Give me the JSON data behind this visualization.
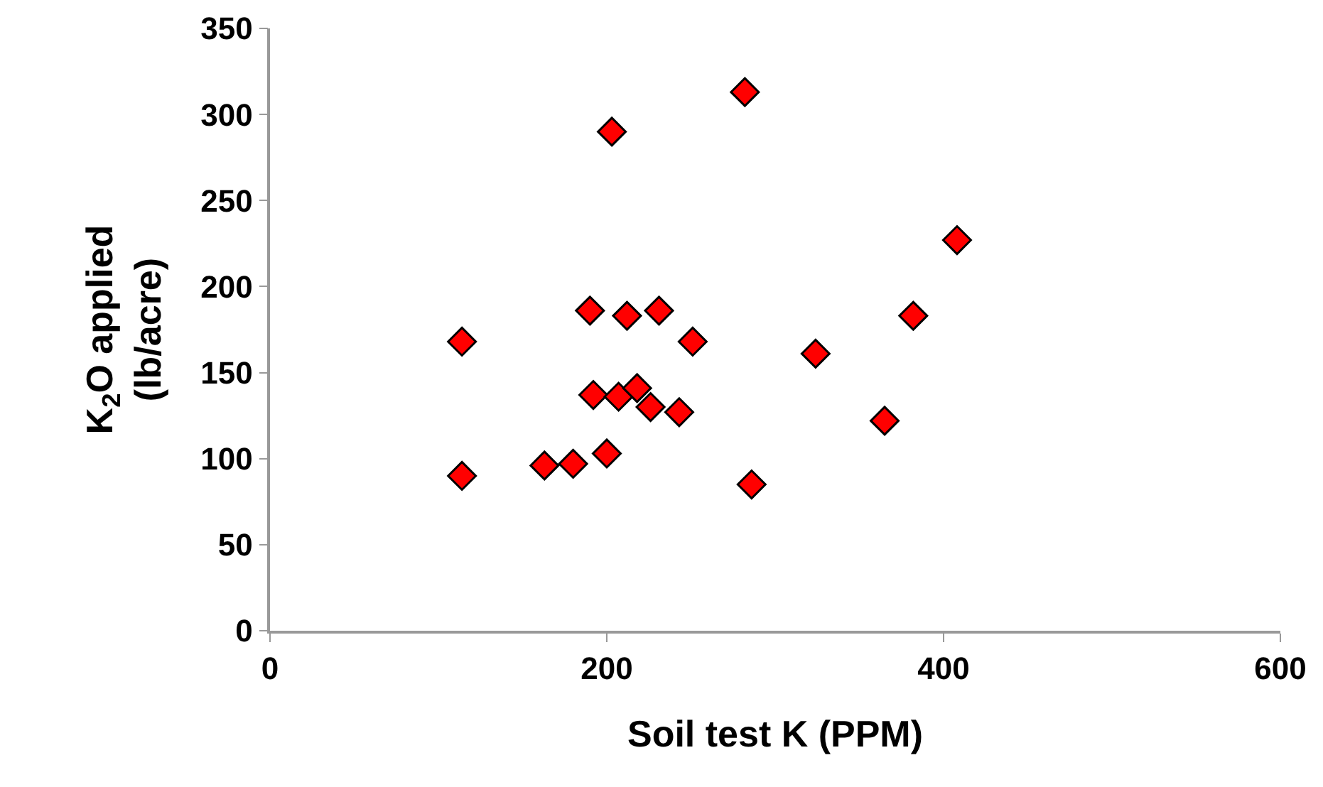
{
  "chart_data": {
    "type": "scatter",
    "xlabel": "Soil test K (PPM)",
    "ylabel": "K$_{2}$O applied\n(lb/acre)",
    "x": [
      114,
      114,
      163,
      180,
      200,
      203,
      282,
      190,
      192,
      212,
      207,
      218,
      226,
      243,
      231,
      251,
      286,
      324,
      365,
      382,
      408
    ],
    "series": [
      {
        "color": "#ff0000",
        "values": [
          168,
          90,
          96,
          97,
          103,
          290,
          313,
          186,
          137,
          183,
          136,
          141,
          130,
          127,
          186,
          168,
          85,
          161,
          122,
          183,
          227
        ]
      }
    ],
    "xlim": [
      0,
      600
    ],
    "xticks": [
      0,
      200,
      400,
      600
    ],
    "ylim": [
      0,
      350
    ],
    "yticks": [
      0,
      50,
      100,
      150,
      200,
      250,
      300,
      350
    ],
    "grid": false,
    "legend": false,
    "marker": "diamond"
  }
}
